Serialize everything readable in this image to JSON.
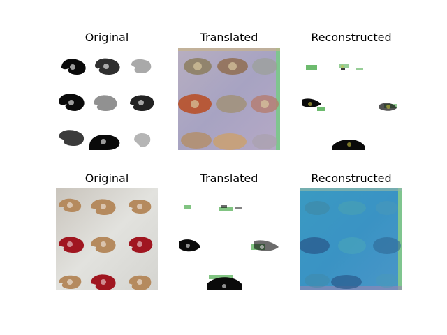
{
  "rows": [
    {
      "panels": [
        {
          "title": "Original"
        },
        {
          "title": "Translated"
        },
        {
          "title": "Reconstructed"
        }
      ]
    },
    {
      "panels": [
        {
          "title": "Original"
        },
        {
          "title": "Translated"
        },
        {
          "title": "Reconstructed"
        }
      ]
    }
  ],
  "colors": {
    "figure_background": "#ffffff",
    "lavender_background": "#a7a3c2",
    "photo_background": "#dcdcd8",
    "motif_tan": "#b58a5e",
    "motif_red": "#a01620",
    "teal_background": "#3a93c4",
    "dark_ink": "#0a0a0a",
    "green_speckle": "#2f9e30"
  }
}
